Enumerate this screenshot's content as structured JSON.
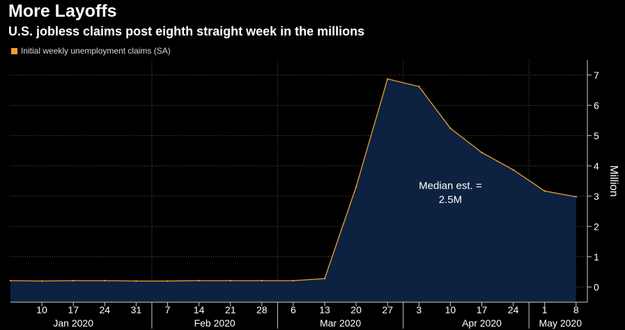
{
  "header": {
    "title": "More Layoffs",
    "subtitle": "U.S. jobless claims post eighth straight week in the millions"
  },
  "chart_data": {
    "type": "area",
    "title": "More Layoffs",
    "subtitle": "U.S. jobless claims post eighth straight week in the millions",
    "legend": {
      "label": "Initial weekly unemployment claims (SA)",
      "color": "#f0a030",
      "placement": "top-left"
    },
    "ylabel": "Million",
    "ylim": [
      -0.5,
      7.5
    ],
    "yticks": [
      0,
      1,
      2,
      3,
      4,
      5,
      6,
      7
    ],
    "y_axis_side": "right",
    "x_tick_labels": [
      "10",
      "17",
      "24",
      "31",
      "7",
      "14",
      "21",
      "28",
      "6",
      "13",
      "20",
      "27",
      "3",
      "10",
      "17",
      "24",
      "1",
      "8"
    ],
    "months": [
      {
        "label": "Jan 2020",
        "center_index": 1
      },
      {
        "label": "Feb 2020",
        "center_index": 5.5
      },
      {
        "label": "Mar 2020",
        "center_index": 9.5
      },
      {
        "label": "Apr 2020",
        "center_index": 14
      },
      {
        "label": "May 2020",
        "center_index": 16.5
      }
    ],
    "month_boundaries": [
      3.5,
      7.5,
      11.5,
      15.5
    ],
    "x_range": [
      -1,
      18
    ],
    "series": [
      {
        "name": "Initial weekly unemployment claims (SA)",
        "x": [
          -1,
          0,
          1,
          2,
          3,
          4,
          5,
          6,
          7,
          8,
          9,
          10,
          11,
          12,
          13,
          14,
          15,
          16,
          17
        ],
        "values": [
          0.21,
          0.2,
          0.21,
          0.21,
          0.2,
          0.2,
          0.21,
          0.21,
          0.21,
          0.21,
          0.28,
          3.31,
          6.87,
          6.62,
          5.24,
          4.44,
          3.87,
          3.17,
          2.98
        ]
      }
    ],
    "annotation": {
      "line1": "Median est. =",
      "line2": "2.5M",
      "x": 13,
      "y": 3.05
    },
    "colors": {
      "line": "#f0a030",
      "fill": "#0d2240",
      "grid": "#5a5a5a",
      "axis": "#cfcfcf"
    }
  }
}
